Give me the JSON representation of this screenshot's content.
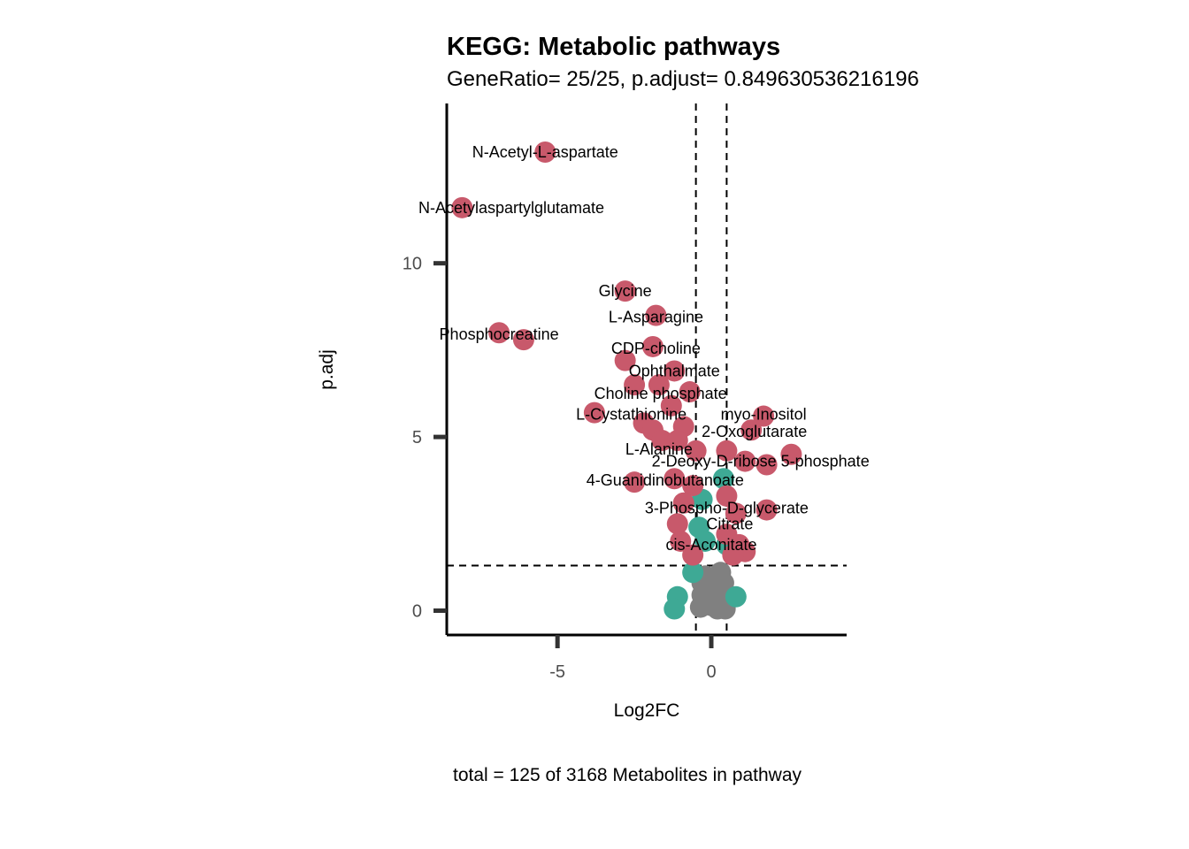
{
  "chart_data": {
    "type": "scatter",
    "title": "KEGG: Metabolic pathways",
    "subtitle": "GeneRatio= 25/25, p.adjust= 0.849630536216196",
    "xlabel": "Log2FC",
    "ylabel": "p.adj",
    "caption": "total = 125 of 3168 Metabolites in pathway",
    "xlim": [
      -8.6,
      4.4
    ],
    "ylim": [
      -0.7,
      14.6
    ],
    "x_ticks": [
      {
        "value": -5,
        "label": "-5"
      },
      {
        "value": 0,
        "label": "0"
      }
    ],
    "y_ticks": [
      {
        "value": 0,
        "label": "0"
      },
      {
        "value": 5,
        "label": "5"
      },
      {
        "value": 10,
        "label": "10"
      }
    ],
    "thresholds": {
      "log2fc": [
        -0.5,
        0.5
      ],
      "p_adj": 1.3
    },
    "colors": {
      "significant": "#c8596b",
      "fc_only": "#3ea995",
      "ns": "#808080"
    },
    "series": [
      {
        "name": "significant",
        "points": [
          {
            "x": -5.4,
            "y": 13.2
          },
          {
            "x": -8.1,
            "y": 11.6
          },
          {
            "x": -2.8,
            "y": 9.2
          },
          {
            "x": -1.8,
            "y": 8.5
          },
          {
            "x": -6.9,
            "y": 8.0
          },
          {
            "x": -6.1,
            "y": 7.8
          },
          {
            "x": -1.9,
            "y": 7.6
          },
          {
            "x": -2.8,
            "y": 7.2
          },
          {
            "x": -1.2,
            "y": 6.9
          },
          {
            "x": -2.5,
            "y": 6.5
          },
          {
            "x": -1.7,
            "y": 6.5
          },
          {
            "x": -0.7,
            "y": 6.3
          },
          {
            "x": -1.3,
            "y": 5.9
          },
          {
            "x": -3.8,
            "y": 5.7
          },
          {
            "x": 1.7,
            "y": 5.6
          },
          {
            "x": -2.2,
            "y": 5.4
          },
          {
            "x": -0.9,
            "y": 5.3
          },
          {
            "x": -1.9,
            "y": 5.2
          },
          {
            "x": 1.3,
            "y": 5.2
          },
          {
            "x": -1.6,
            "y": 4.9
          },
          {
            "x": -1.1,
            "y": 4.9
          },
          {
            "x": -0.5,
            "y": 4.6
          },
          {
            "x": 0.5,
            "y": 4.6
          },
          {
            "x": 2.6,
            "y": 4.5
          },
          {
            "x": 1.1,
            "y": 4.3
          },
          {
            "x": 1.8,
            "y": 4.2
          },
          {
            "x": -2.5,
            "y": 3.7
          },
          {
            "x": -1.2,
            "y": 3.8
          },
          {
            "x": -0.6,
            "y": 3.6
          },
          {
            "x": 0.5,
            "y": 3.3
          },
          {
            "x": -0.9,
            "y": 3.1
          },
          {
            "x": 1.8,
            "y": 2.9
          },
          {
            "x": 0.8,
            "y": 2.8
          },
          {
            "x": -1.1,
            "y": 2.5
          },
          {
            "x": 0.5,
            "y": 2.2
          },
          {
            "x": -1.0,
            "y": 2.0
          },
          {
            "x": 0.9,
            "y": 1.9
          },
          {
            "x": 1.1,
            "y": 1.7
          },
          {
            "x": 0.7,
            "y": 1.6
          },
          {
            "x": -0.6,
            "y": 1.6
          }
        ]
      },
      {
        "name": "fc_only",
        "points": [
          {
            "x": 0.4,
            "y": 3.8
          },
          {
            "x": -0.3,
            "y": 3.2
          },
          {
            "x": -0.4,
            "y": 2.4
          },
          {
            "x": -0.2,
            "y": 2.0
          },
          {
            "x": 0.5,
            "y": 1.9
          },
          {
            "x": -0.6,
            "y": 1.1
          },
          {
            "x": -1.1,
            "y": 0.4
          },
          {
            "x": -1.2,
            "y": 0.05
          },
          {
            "x": 0.8,
            "y": 0.4
          }
        ]
      },
      {
        "name": "ns",
        "points": [
          {
            "x": 0.3,
            "y": 1.1
          },
          {
            "x": -0.2,
            "y": 1.0
          },
          {
            "x": 0.1,
            "y": 0.9
          },
          {
            "x": 0.4,
            "y": 0.8
          },
          {
            "x": -0.3,
            "y": 0.8
          },
          {
            "x": 0.2,
            "y": 0.7
          },
          {
            "x": -0.1,
            "y": 0.6
          },
          {
            "x": 0.35,
            "y": 0.55
          },
          {
            "x": 0.0,
            "y": 0.5
          },
          {
            "x": -0.3,
            "y": 0.45
          },
          {
            "x": 0.25,
            "y": 0.4
          },
          {
            "x": 0.1,
            "y": 0.3
          },
          {
            "x": -0.2,
            "y": 0.25
          },
          {
            "x": 0.4,
            "y": 0.2
          },
          {
            "x": 0.0,
            "y": 0.15
          },
          {
            "x": -0.35,
            "y": 0.1
          },
          {
            "x": 0.2,
            "y": 0.05
          },
          {
            "x": 0.45,
            "y": 0.05
          }
        ]
      }
    ],
    "labels": [
      {
        "text": "N-Acetyl-L-aspartate",
        "x": -5.4,
        "y": 13.2
      },
      {
        "text": "N-Acetylaspartylglutamate",
        "x": -6.5,
        "y": 11.6
      },
      {
        "text": "Glycine",
        "x": -2.8,
        "y": 9.2
      },
      {
        "text": "L-Asparagine",
        "x": -1.8,
        "y": 8.45
      },
      {
        "text": "Phosphocreatine",
        "x": -6.9,
        "y": 7.95
      },
      {
        "text": "CDP-choline",
        "x": -1.8,
        "y": 7.55
      },
      {
        "text": "Ophthalmate",
        "x": -1.2,
        "y": 6.9
      },
      {
        "text": "Choline phosphate",
        "x": -1.65,
        "y": 6.25
      },
      {
        "text": "L-Cystathionine",
        "x": -2.6,
        "y": 5.65
      },
      {
        "text": "myo-Inositol",
        "x": 1.7,
        "y": 5.65
      },
      {
        "text": "2-Oxoglutarate",
        "x": 1.4,
        "y": 5.15
      },
      {
        "text": "L-Alanine",
        "x": -1.7,
        "y": 4.65
      },
      {
        "text": "2-Deoxy-D-ribose 5-phosphate",
        "x": 1.6,
        "y": 4.3
      },
      {
        "text": "4-Guanidinobutanoate",
        "x": -1.5,
        "y": 3.75
      },
      {
        "text": "3-Phospho-D-glycerate",
        "x": 0.5,
        "y": 2.95
      },
      {
        "text": "Citrate",
        "x": 0.6,
        "y": 2.5
      },
      {
        "text": "cis-Aconitate",
        "x": 0.0,
        "y": 1.9
      }
    ]
  }
}
